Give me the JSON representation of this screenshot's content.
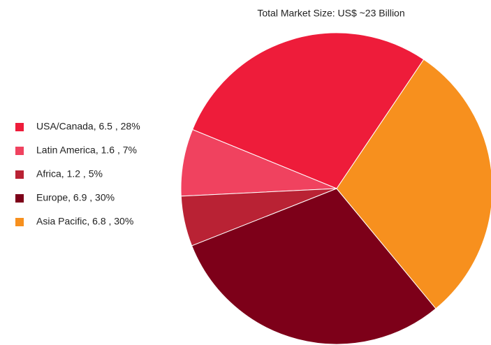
{
  "chart_data": {
    "type": "pie",
    "title": "Total Market Size: US$ ~23 Billion",
    "categories": [
      "USA/Canada, 6.5 , 28%",
      "Latin America, 1.6 , 7%",
      "Africa, 1.2 , 5%",
      "Europe, 6.9 , 30%",
      "Asia Pacific, 6.8 , 30%"
    ],
    "values": [
      6.5,
      1.6,
      1.2,
      6.9,
      6.8
    ],
    "colors": [
      "#ee1c3a",
      "#f0425f",
      "#b92234",
      "#7d0019",
      "#f7901e"
    ],
    "legend": "left"
  }
}
